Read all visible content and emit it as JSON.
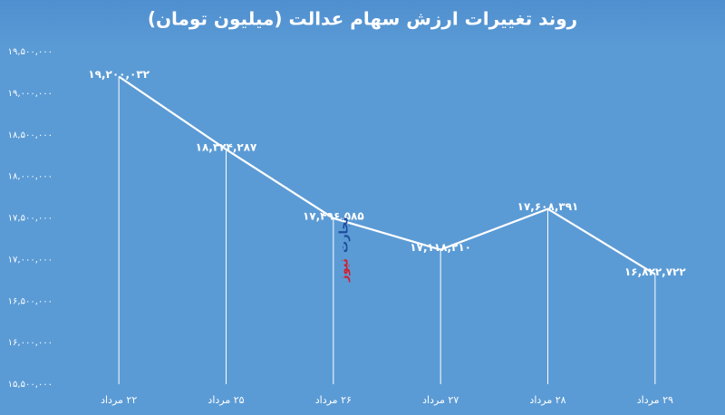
{
  "chart_data": {
    "type": "line",
    "title": "روند تغییرات ارزش سهام عدالت (میلیون تومان)",
    "categories": [
      "۲۲ مرداد",
      "۲۵ مرداد",
      "۲۶ مرداد",
      "۲۷ مرداد",
      "۲۸ مرداد",
      "۲۹ مرداد"
    ],
    "series": [
      {
        "color": "#ffffff",
        "values": [
          19200032,
          18324287,
          17496585,
          17118210,
          17608391,
          16822722
        ],
        "value_labels": [
          "۱۹,۲۰۰,۰۳۲",
          "۱۸,۳۲۴,۲۸۷",
          "۱۷,۴۹۶,۵۸۵",
          "۱۷,۱۱۸,۲۱۰",
          "۱۷,۶۰۸,۳۹۱",
          "۱۶,۸۲۲,۷۲۲"
        ]
      }
    ],
    "ylim": [
      15500000,
      19500000
    ],
    "yticks": [
      {
        "value": 15500000,
        "label": "۱۵,۵۰۰,۰۰۰"
      },
      {
        "value": 16000000,
        "label": "۱۶,۰۰۰,۰۰۰"
      },
      {
        "value": 16500000,
        "label": "۱۶,۵۰۰,۰۰۰"
      },
      {
        "value": 17000000,
        "label": "۱۷,۰۰۰,۰۰۰"
      },
      {
        "value": 17500000,
        "label": "۱۷,۵۰۰,۰۰۰"
      },
      {
        "value": 18000000,
        "label": "۱۸,۰۰۰,۰۰۰"
      },
      {
        "value": 18500000,
        "label": "۱۸,۵۰۰,۰۰۰"
      },
      {
        "value": 19000000,
        "label": "۱۹,۰۰۰,۰۰۰"
      },
      {
        "value": 19500000,
        "label": "۱۹,۵۰۰,۰۰۰"
      }
    ],
    "annotations": [
      {
        "text": "تجارت",
        "color": "#1f4e9c"
      },
      {
        "text": "نیوز",
        "color": "#d0202e"
      }
    ]
  }
}
